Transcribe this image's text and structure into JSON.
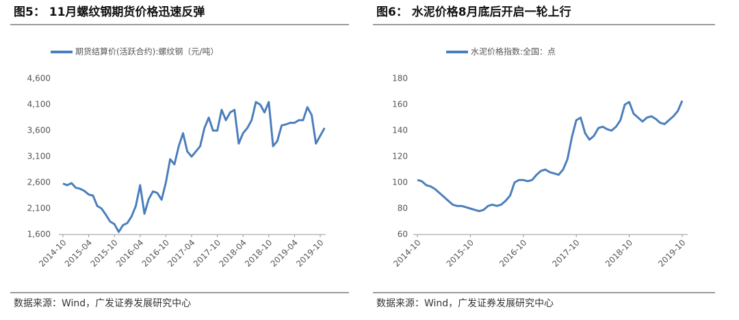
{
  "chart_data": [
    {
      "type": "line",
      "title": "图5： 11月螺纹钢期货价格迅速反弹",
      "source": "数据来源：Wind，广发证券发展研究中心",
      "categories": [
        "2014-10",
        null,
        null,
        null,
        null,
        null,
        "2015-04",
        null,
        null,
        null,
        null,
        null,
        "2015-10",
        null,
        null,
        null,
        null,
        null,
        "2016-04",
        null,
        null,
        null,
        null,
        null,
        "2016-10",
        null,
        null,
        null,
        null,
        null,
        "2017-04",
        null,
        null,
        null,
        null,
        null,
        "2017-10",
        null,
        null,
        null,
        null,
        null,
        "2018-04",
        null,
        null,
        null,
        null,
        null,
        "2018-10",
        null,
        null,
        null,
        null,
        null,
        "2019-04",
        null,
        null,
        null,
        null,
        null,
        "2019-10",
        null
      ],
      "series": [
        {
          "name": "期货结算价(活跃合约):螺纹钢（元/吨）",
          "color": "#4a7ebb",
          "values": [
            2580,
            2550,
            2590,
            2500,
            2480,
            2440,
            2370,
            2350,
            2150,
            2100,
            1980,
            1850,
            1800,
            1650,
            1780,
            1820,
            1950,
            2150,
            2550,
            2000,
            2280,
            2430,
            2400,
            2270,
            2600,
            3050,
            2950,
            3300,
            3550,
            3200,
            3100,
            3200,
            3300,
            3650,
            3850,
            3600,
            3600,
            4000,
            3800,
            3950,
            4000,
            3350,
            3550,
            3650,
            3800,
            4150,
            4100,
            3950,
            4150,
            3300,
            3400,
            3700,
            3720,
            3750,
            3750,
            3800,
            3800,
            4050,
            3900,
            3350,
            3500,
            3650
          ]
        }
      ],
      "ylim": [
        1600,
        4600
      ],
      "yticks": [
        {
          "value": 1600,
          "label": "1,600"
        },
        {
          "value": 2100,
          "label": "2,100"
        },
        {
          "value": 2600,
          "label": "2,600"
        },
        {
          "value": 3100,
          "label": "3,100"
        },
        {
          "value": 3600,
          "label": "3,600"
        },
        {
          "value": 4100,
          "label": "4,100"
        },
        {
          "value": 4600,
          "label": "4,600"
        }
      ]
    },
    {
      "type": "line",
      "title": "图6： 水泥价格8月底后开启一轮上行",
      "source": "数据来源：Wind，广发证券发展研究中心",
      "categories": [
        "2014-10",
        null,
        null,
        null,
        null,
        null,
        null,
        null,
        null,
        null,
        null,
        null,
        "2015-10",
        null,
        null,
        null,
        null,
        null,
        null,
        null,
        null,
        null,
        null,
        null,
        "2016-10",
        null,
        null,
        null,
        null,
        null,
        null,
        null,
        null,
        null,
        null,
        null,
        "2017-10",
        null,
        null,
        null,
        null,
        null,
        null,
        null,
        null,
        null,
        null,
        null,
        "2018-10",
        null,
        null,
        null,
        null,
        null,
        null,
        null,
        null,
        null,
        null,
        null,
        "2019-10"
      ],
      "series": [
        {
          "name": "水泥价格指数:全国：点",
          "color": "#4a7ebb",
          "values": [
            102,
            101,
            98,
            97,
            95,
            92,
            89,
            86,
            83,
            82,
            82,
            81,
            80,
            79,
            78,
            79,
            82,
            83,
            82,
            83,
            86,
            90,
            100,
            102,
            102,
            101,
            102,
            106,
            109,
            110,
            108,
            107,
            106,
            110,
            118,
            135,
            148,
            150,
            138,
            133,
            136,
            142,
            143,
            141,
            140,
            143,
            148,
            160,
            162,
            153,
            150,
            147,
            150,
            151,
            149,
            146,
            145,
            148,
            151,
            155,
            163
          ]
        }
      ],
      "ylim": [
        60,
        180
      ],
      "yticks": [
        60,
        80,
        100,
        120,
        140,
        160,
        180
      ]
    }
  ]
}
